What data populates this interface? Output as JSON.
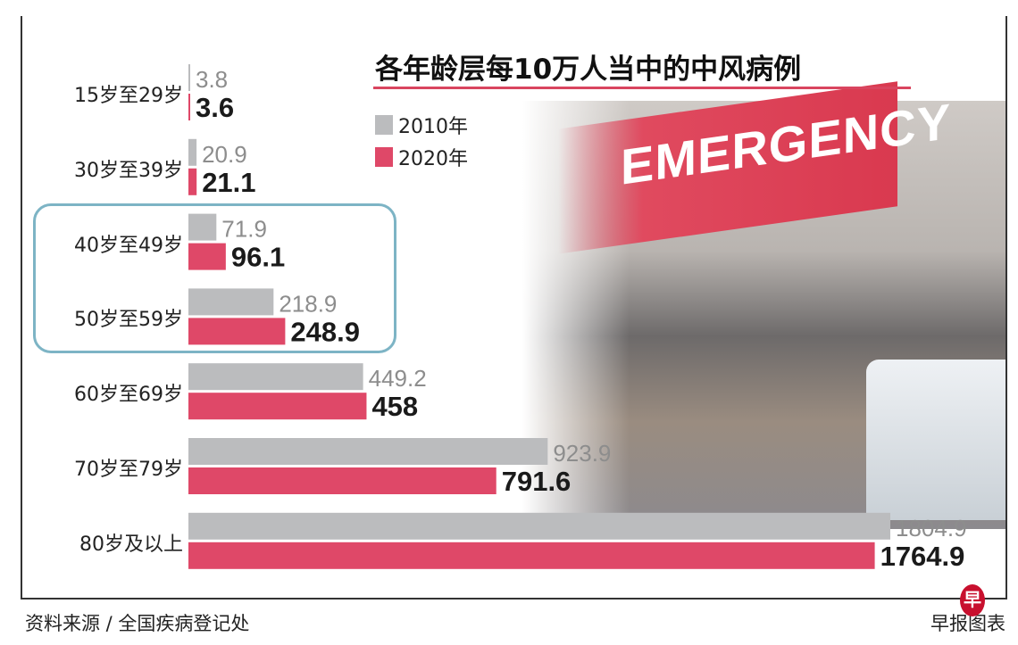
{
  "chart_data": {
    "type": "bar",
    "orientation": "horizontal",
    "title": "各年龄层每10万人当中的中风病例",
    "categories": [
      "15岁至29岁",
      "30岁至39岁",
      "40岁至49岁",
      "50岁至59岁",
      "60岁至69岁",
      "70岁至79岁",
      "80岁及以上"
    ],
    "series": [
      {
        "name": "2010年",
        "color": "#bbbcbe",
        "values": [
          3.8,
          20.9,
          71.9,
          218.9,
          449.2,
          923.9,
          1804.9
        ],
        "labels": [
          "3.8",
          "20.9",
          "71.9",
          "218.9",
          "449.2",
          "923.9",
          "1804.9"
        ]
      },
      {
        "name": "2020年",
        "color": "#df4868",
        "values": [
          3.6,
          21.1,
          96.1,
          248.9,
          458,
          791.6,
          1764.9
        ],
        "labels": [
          "3.6",
          "21.1",
          "96.1",
          "248.9",
          "458",
          "791.6",
          "1764.9"
        ]
      }
    ],
    "xlim": [
      0,
      1804.9
    ],
    "grid": false,
    "legend_position": "top-center",
    "highlighted_categories": [
      "40岁至49岁",
      "50岁至59岁"
    ],
    "highlight_color": "#7db4c5"
  },
  "background_photo_text": "EMERGENCY",
  "footer": {
    "source": "资料来源 / 全国疾病登记处",
    "brand": "早报图表",
    "logo_text": "早"
  }
}
